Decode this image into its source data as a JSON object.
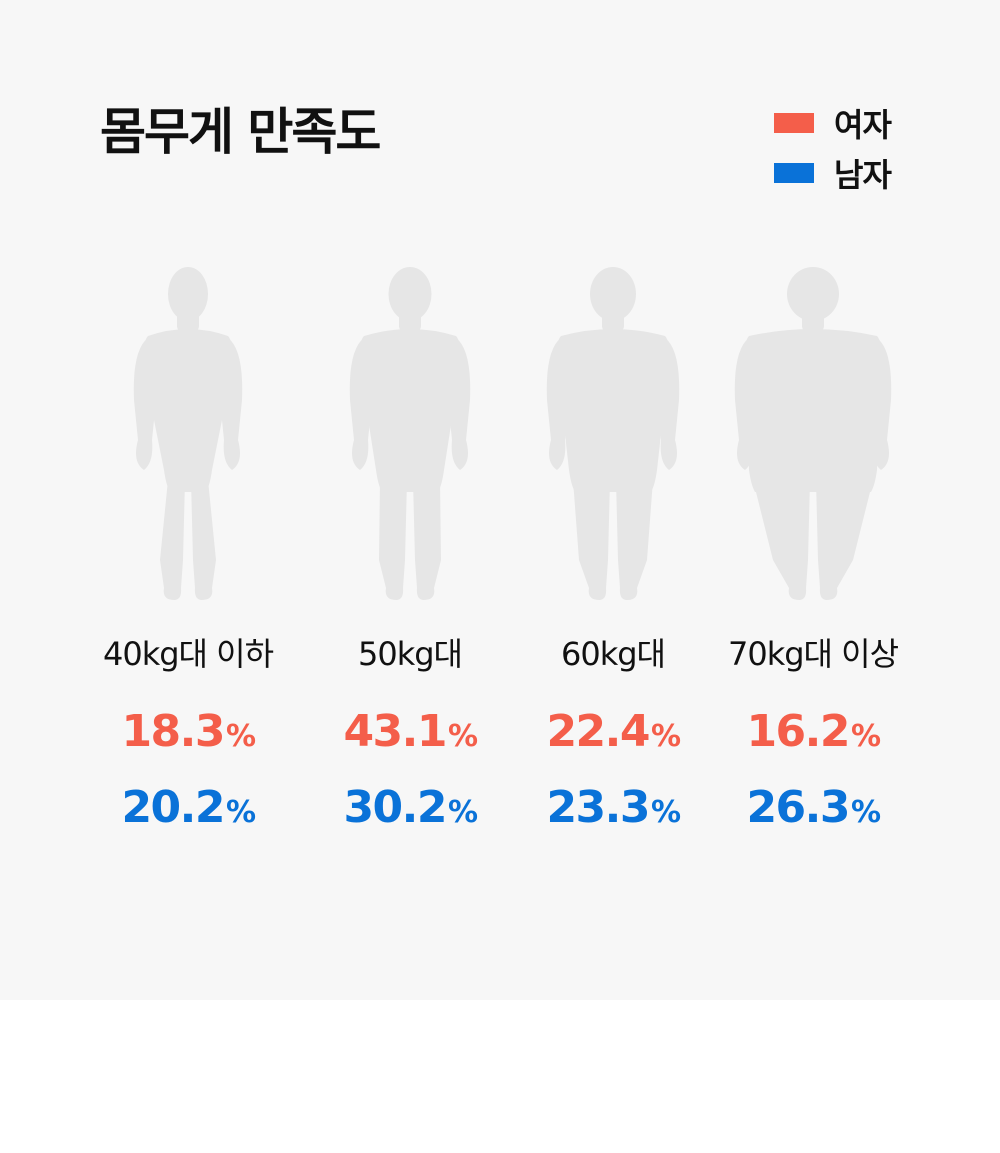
{
  "title": "몸무게 만족도",
  "legend": [
    {
      "label": "여자",
      "color": "#f45e4a"
    },
    {
      "label": "남자",
      "color": "#0a72d8"
    }
  ],
  "chart_data": {
    "type": "table",
    "title": "몸무게 만족도",
    "unit": "%",
    "categories": [
      "40kg대 이하",
      "50kg대",
      "60kg대",
      "70kg대 이상"
    ],
    "series": [
      {
        "name": "여자",
        "color": "#f45e4a",
        "values": [
          18.3,
          43.1,
          22.4,
          16.2
        ]
      },
      {
        "name": "남자",
        "color": "#0a72d8",
        "values": [
          20.2,
          30.2,
          23.3,
          26.3
        ]
      }
    ],
    "icons": [
      "body-silhouette-icon",
      "body-silhouette-icon",
      "body-silhouette-icon",
      "body-silhouette-icon"
    ]
  }
}
